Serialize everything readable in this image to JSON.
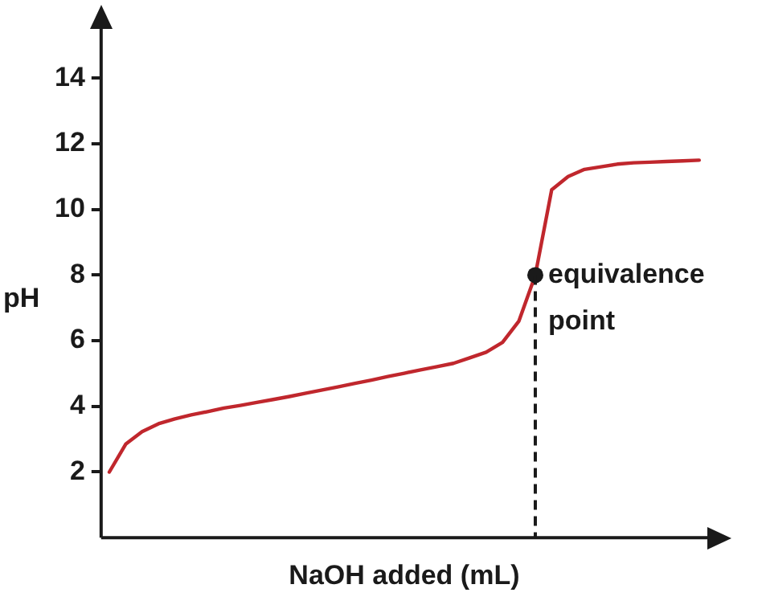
{
  "chart_data": {
    "type": "line",
    "xlabel": "NaOH added (mL)",
    "ylabel": "pH",
    "categories": [
      null,
      null,
      null,
      null,
      null,
      null,
      null,
      null,
      null,
      null,
      null,
      null,
      null,
      null,
      null,
      null,
      null,
      null,
      null,
      null,
      null,
      null,
      null,
      null,
      null,
      null,
      null,
      null,
      null,
      null,
      null,
      null,
      null,
      null,
      null,
      null,
      null
    ],
    "ylim": [
      0,
      15.5
    ],
    "yticks": [
      2,
      4,
      6,
      8,
      10,
      12,
      14
    ],
    "tick_labels": "y",
    "grid": false,
    "legend": false,
    "marker": "none",
    "line_style": "solid",
    "series": [
      {
        "color": "#c0272d",
        "values": [
          2,
          2.85,
          3.23,
          3.47,
          3.62,
          3.74,
          3.84,
          3.95,
          4.03,
          4.12,
          4.21,
          4.3,
          4.4,
          4.5,
          4.6,
          4.7,
          4.8,
          4.91,
          5.01,
          5.11,
          5.21,
          5.31,
          5.48,
          5.65,
          5.95,
          6.6,
          8,
          10.6,
          11,
          11.22,
          11.3,
          11.38,
          11.42,
          11.44,
          11.46,
          11.48,
          11.5
        ]
      },
      {
        "type": "scatter",
        "marker": "circle",
        "line_style": "dashed",
        "color": "#1a1a1a",
        "values": [
          null,
          null,
          null,
          null,
          null,
          null,
          null,
          null,
          null,
          null,
          null,
          null,
          null,
          null,
          null,
          null,
          null,
          null,
          null,
          null,
          null,
          null,
          null,
          null,
          null,
          null,
          8,
          null,
          null,
          null,
          null,
          null,
          null,
          null,
          null,
          null,
          null
        ]
      }
    ],
    "annotations": [
      "equivalence point"
    ]
  }
}
